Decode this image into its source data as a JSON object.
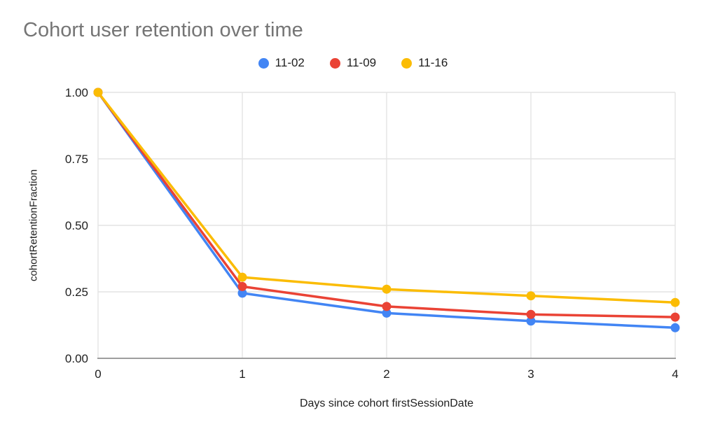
{
  "chart_data": {
    "type": "line",
    "title": "Cohort user retention over time",
    "xlabel": "Days since cohort firstSessionDate",
    "ylabel": "cohortRetentionFraction",
    "x": [
      0,
      1,
      2,
      3,
      4
    ],
    "series": [
      {
        "name": "11-02",
        "color": "#4285F4",
        "values": [
          1.0,
          0.245,
          0.17,
          0.14,
          0.115
        ]
      },
      {
        "name": "11-09",
        "color": "#EA4335",
        "values": [
          1.0,
          0.27,
          0.195,
          0.165,
          0.155
        ]
      },
      {
        "name": "11-16",
        "color": "#FBBC04",
        "values": [
          1.0,
          0.305,
          0.26,
          0.235,
          0.21
        ]
      }
    ],
    "xlim": [
      0,
      4
    ],
    "ylim": [
      0.0,
      1.0
    ],
    "xticks": [
      0,
      1,
      2,
      3,
      4
    ],
    "xtick_labels": [
      "0",
      "1",
      "2",
      "3",
      "4"
    ],
    "yticks": [
      0.0,
      0.25,
      0.5,
      0.75,
      1.0
    ],
    "ytick_labels": [
      "0.00",
      "0.25",
      "0.50",
      "0.75",
      "1.00"
    ],
    "grid": true,
    "legend_position": "top",
    "colors": {
      "title": "#757575",
      "tick_labels": "#1f1f1f",
      "gridline": "#e3e3e3",
      "axis_line": "#9e9e9e"
    }
  }
}
